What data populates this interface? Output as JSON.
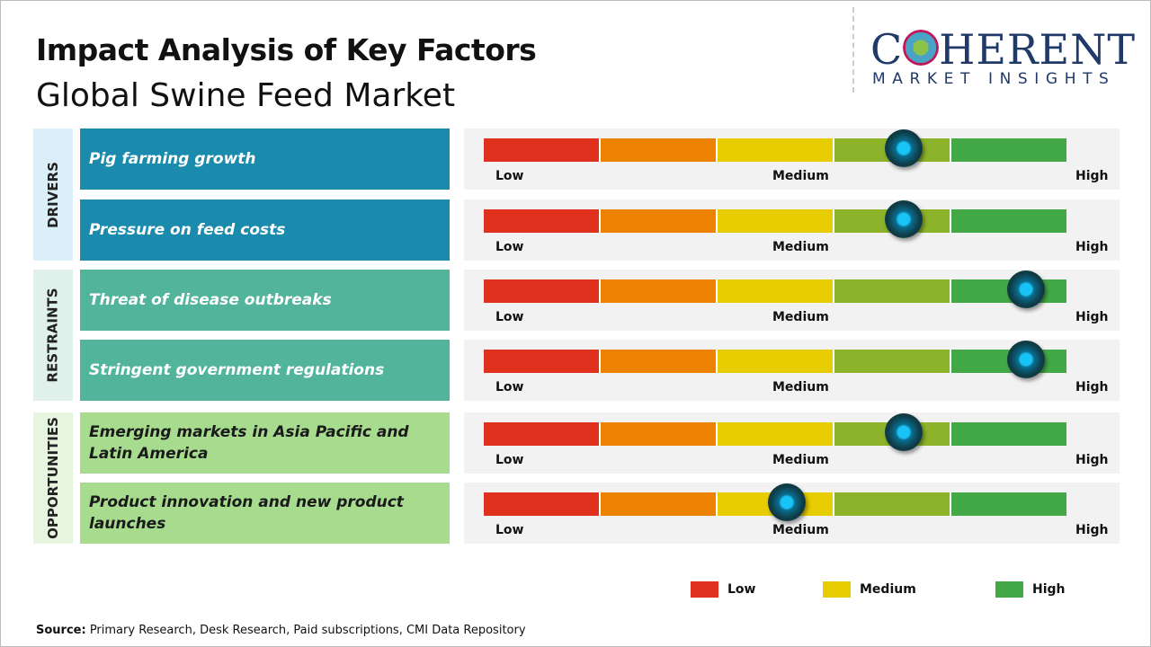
{
  "title": "Impact Analysis of Key Factors",
  "subtitle": "Global Swine Feed Market",
  "logo": {
    "line1": "COHERENT",
    "line2": "MARKET INSIGHTS"
  },
  "colors": {
    "drivers": "#1a8aad",
    "restraints": "#52b59b",
    "opportunities": "#a7dc8f",
    "scale": [
      "#e0301e",
      "#ec8200",
      "#e6cc00",
      "#8db32b",
      "#43a947"
    ]
  },
  "scale_labels": {
    "low": "Low",
    "medium": "Medium",
    "high": "High"
  },
  "categories": [
    {
      "name": "DRIVERS",
      "items": [
        {
          "label": "Pig farming growth",
          "impact": 0.72
        },
        {
          "label": "Pressure on feed costs",
          "impact": 0.72
        }
      ]
    },
    {
      "name": "RESTRAINTS",
      "items": [
        {
          "label": "Threat of disease outbreaks",
          "impact": 0.93
        },
        {
          "label": "Stringent government regulations",
          "impact": 0.93
        }
      ]
    },
    {
      "name": "OPPORTUNITIES",
      "items": [
        {
          "label": "Emerging markets in Asia Pacific and Latin America",
          "impact": 0.72
        },
        {
          "label": "Product innovation and new product launches",
          "impact": 0.52
        }
      ]
    }
  ],
  "legend": [
    {
      "label": "Low",
      "color": "#e0301e"
    },
    {
      "label": "Medium",
      "color": "#e6cc00"
    },
    {
      "label": "High",
      "color": "#43a947"
    }
  ],
  "source": {
    "prefix": "Source:",
    "text": " Primary Research, Desk Research, Paid subscriptions, CMI Data Repository"
  }
}
